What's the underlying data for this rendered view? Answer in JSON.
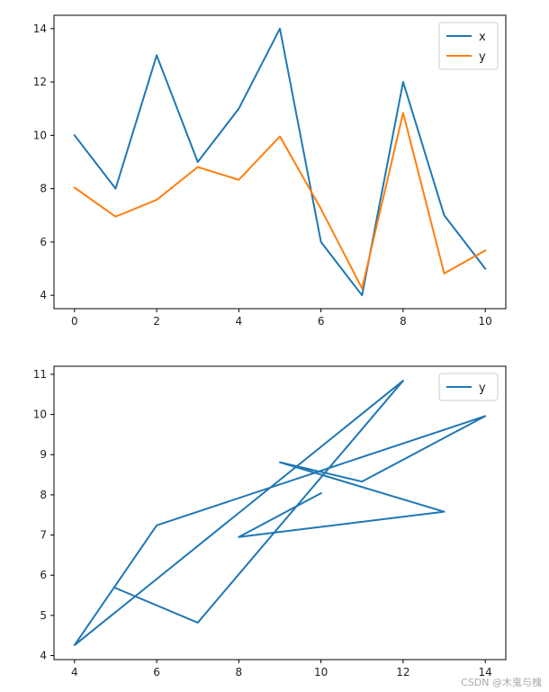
{
  "chart_data": [
    {
      "type": "line",
      "title": "",
      "xlabel": "",
      "ylabel": "",
      "xlim": [
        -0.5,
        10.5
      ],
      "ylim": [
        3.5,
        14.5
      ],
      "xticks": [
        0,
        2,
        4,
        6,
        8,
        10
      ],
      "yticks": [
        4,
        6,
        8,
        10,
        12,
        14
      ],
      "grid": false,
      "legend": "top-right",
      "series": [
        {
          "name": "x",
          "color": "#1f77b4",
          "x": [
            0,
            1,
            2,
            3,
            4,
            5,
            6,
            7,
            8,
            9,
            10
          ],
          "y": [
            10,
            8,
            13,
            9,
            11,
            14,
            6,
            4,
            12,
            7,
            5
          ]
        },
        {
          "name": "y",
          "color": "#ff7f0e",
          "x": [
            0,
            1,
            2,
            3,
            4,
            5,
            6,
            7,
            8,
            9,
            10
          ],
          "y": [
            8.04,
            6.95,
            7.58,
            8.81,
            8.33,
            9.96,
            7.24,
            4.26,
            10.84,
            4.82,
            5.68
          ]
        }
      ]
    },
    {
      "type": "line",
      "title": "",
      "xlabel": "",
      "ylabel": "",
      "xlim": [
        3.5,
        14.5
      ],
      "ylim": [
        3.9,
        11.2
      ],
      "xticks": [
        4,
        6,
        8,
        10,
        12,
        14
      ],
      "yticks": [
        4,
        5,
        6,
        7,
        8,
        9,
        10,
        11
      ],
      "grid": false,
      "legend": "top-right",
      "series": [
        {
          "name": "y",
          "color": "#1f77b4",
          "x": [
            10,
            8,
            13,
            9,
            11,
            14,
            6,
            4,
            12,
            7,
            5
          ],
          "y": [
            8.04,
            6.95,
            7.58,
            8.81,
            8.33,
            9.96,
            7.24,
            4.26,
            10.84,
            4.82,
            5.68
          ]
        }
      ]
    }
  ],
  "watermark": "CSDN @木鬼与槐"
}
